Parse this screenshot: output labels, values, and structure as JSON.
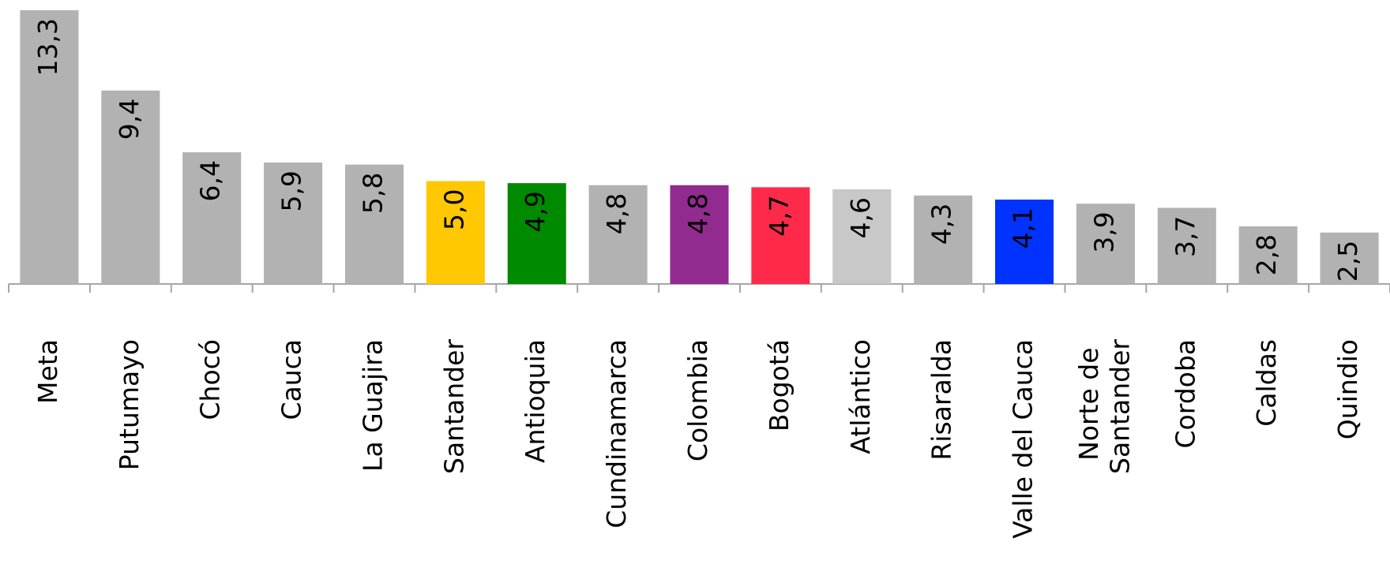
{
  "chart_data": {
    "type": "bar",
    "categories": [
      "Meta",
      "Putumayo",
      "Chocó",
      "Cauca",
      "La Guajira",
      "Santander",
      "Antioquia",
      "Cundinamarca",
      "Colombia",
      "Bogotá",
      "Atlántico",
      "Risaralda",
      "Valle del Cauca",
      "Norte de Santander",
      "Cordoba",
      "Caldas",
      "Quindio"
    ],
    "values": [
      13.3,
      9.4,
      6.4,
      5.9,
      5.8,
      5.0,
      4.9,
      4.8,
      4.8,
      4.7,
      4.6,
      4.3,
      4.1,
      3.9,
      3.7,
      2.8,
      2.5
    ],
    "value_labels": [
      "13,3",
      "9,4",
      "6,4",
      "5,9",
      "5,8",
      "5,0",
      "4,9",
      "4,8",
      "4,8",
      "4,7",
      "4,6",
      "4,3",
      "4,1",
      "3,9",
      "3,7",
      "2,8",
      "2,5"
    ],
    "colors": [
      "#b2b2b2",
      "#b2b2b2",
      "#b2b2b2",
      "#b2b2b2",
      "#b2b2b2",
      "#ffc800",
      "#008a00",
      "#b2b2b2",
      "#922b90",
      "#ff2a4a",
      "#c8c8c8",
      "#b2b2b2",
      "#0033ff",
      "#b2b2b2",
      "#b2b2b2",
      "#b2b2b2",
      "#b2b2b2"
    ]
  }
}
